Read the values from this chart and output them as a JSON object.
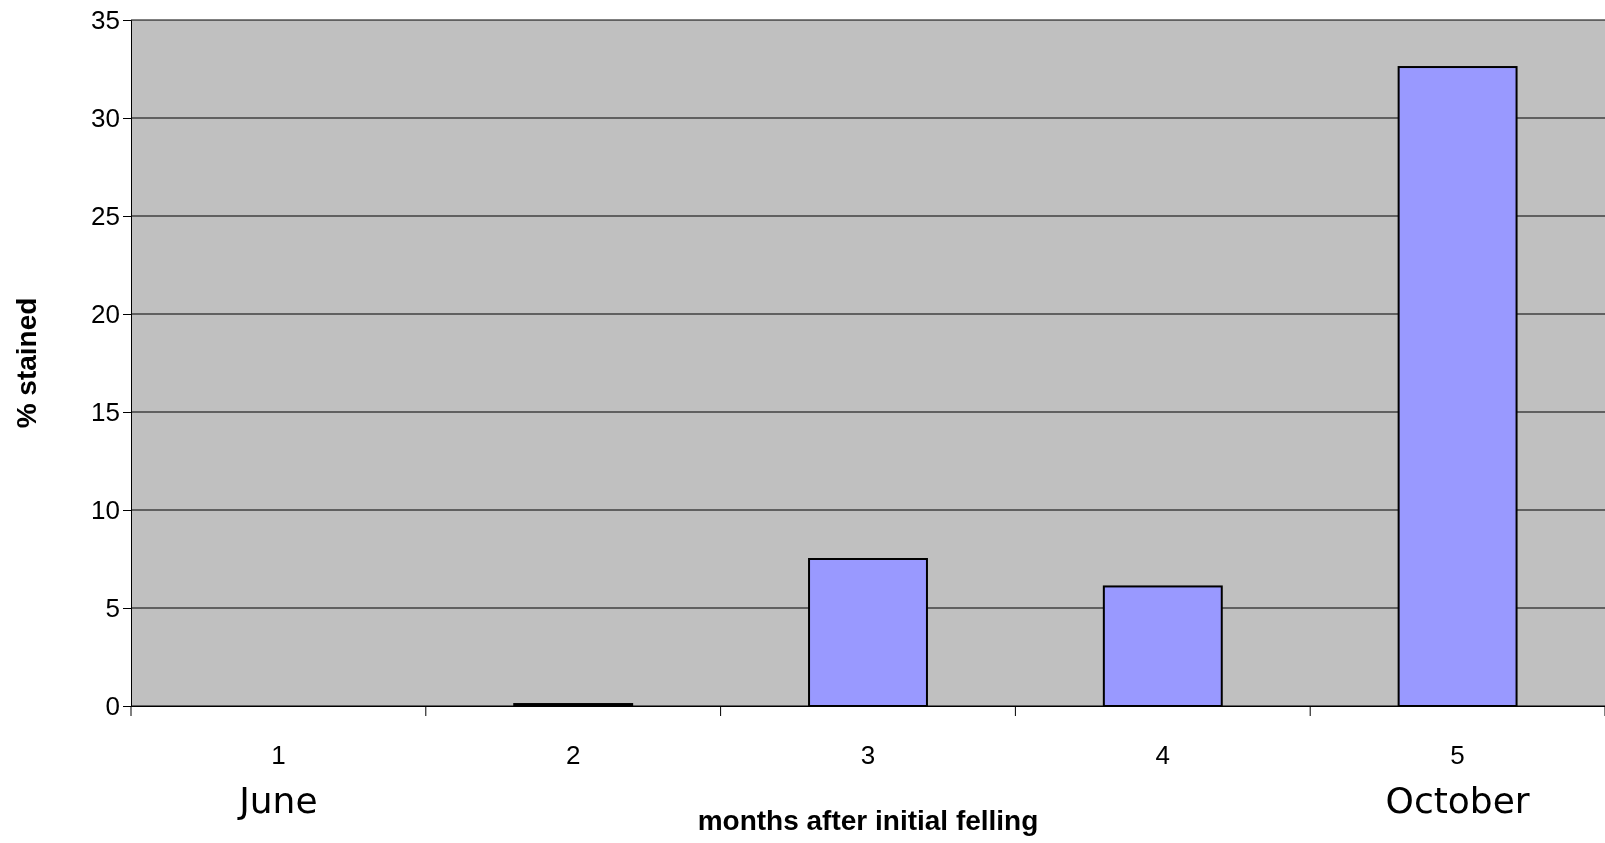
{
  "chart_data": {
    "type": "bar",
    "xlabel": "months after initial felling",
    "ylabel": "% stained",
    "categories": [
      "1",
      "2",
      "3",
      "4",
      "5"
    ],
    "values": [
      0,
      0.1,
      7.5,
      6.1,
      32.6
    ],
    "color": "#9999ff",
    "ylim": [
      0,
      35
    ],
    "yticks": [
      0,
      5,
      10,
      15,
      20,
      25,
      30,
      35
    ],
    "grid": "y",
    "annotations": [
      "June",
      "October"
    ]
  }
}
